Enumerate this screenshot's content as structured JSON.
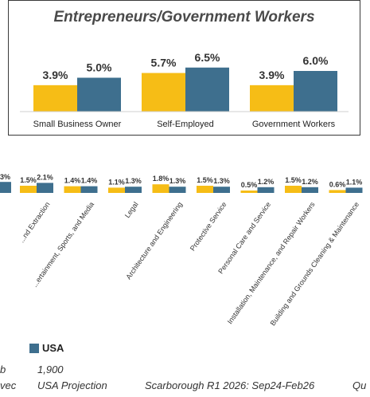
{
  "colors": {
    "series_a": "#f6bd16",
    "series_b": "#3e6f8e"
  },
  "chart_data": [
    {
      "type": "bar",
      "title": "Entrepreneurs/Government Workers",
      "categories": [
        "Small Business Owner",
        "Self-Employed",
        "Government Workers"
      ],
      "series": [
        {
          "values": [
            3.9,
            5.7,
            3.9
          ],
          "labels": [
            "3.9%",
            "5.7%",
            "3.9%"
          ]
        },
        {
          "values": [
            5.0,
            6.5,
            6.0
          ],
          "labels": [
            "5.0%",
            "6.5%",
            "6.0%"
          ]
        }
      ]
    },
    {
      "type": "bar",
      "categories": [
        "...nd Extraction",
        "...ertainment, Sports, and Media",
        "Legal",
        "Architecture and Engineering",
        "Protective Service",
        "Personal Care and Service",
        "Installation, Maintenance, and Repair Workers",
        "Building and Grounds Cleaning & Maintenance"
      ],
      "series": [
        {
          "values": [
            1.5,
            1.4,
            1.1,
            1.8,
            1.5,
            0.5,
            1.5,
            0.6
          ],
          "labels": [
            "1.5%",
            "1.4%",
            "1.1%",
            "1.8%",
            "1.5%",
            "0.5%",
            "1.5%",
            "0.6%"
          ]
        },
        {
          "name": "USA",
          "values": [
            2.1,
            1.4,
            1.3,
            1.3,
            1.3,
            1.2,
            1.2,
            1.1
          ],
          "labels": [
            "2.1%",
            "1.4%",
            "1.3%",
            "1.3%",
            "1.3%",
            "1.2%",
            "1.2%",
            "1.1%"
          ]
        }
      ],
      "partial_leading": {
        "value": 2.3,
        "label": "3%"
      },
      "legend": {
        "label": "USA"
      }
    }
  ],
  "footer": {
    "sample_label": "b",
    "sample_size": "1,900",
    "row2_col1": "vec",
    "row2_col2": "USA Projection",
    "row2_col3": "Scarborough R1 2026: Sep24-Feb26",
    "row2_col4": "Qu"
  }
}
